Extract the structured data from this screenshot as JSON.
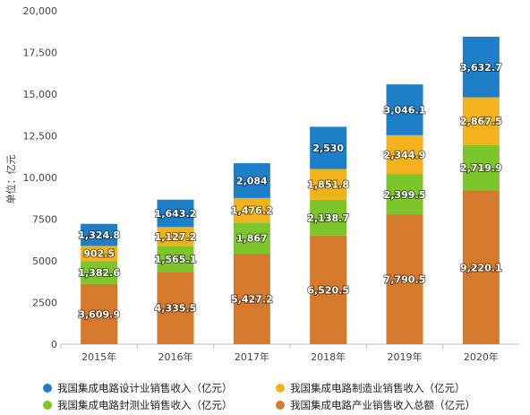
{
  "chart_data": {
    "type": "bar",
    "stacked": true,
    "categories": [
      "2015年",
      "2016年",
      "2017年",
      "2018年",
      "2019年",
      "2020年"
    ],
    "ylabel": "单位：亿元",
    "ylim": [
      0,
      20000
    ],
    "yticks": [
      0,
      2500,
      5000,
      7500,
      10000,
      12500,
      15000,
      17500,
      20000
    ],
    "ytick_labels": [
      "0",
      "2500",
      "5000",
      "7500",
      "10,000",
      "12,500",
      "15,000",
      "17,500",
      "20,000"
    ],
    "grid": false,
    "legend_position": "bottom",
    "series": [
      {
        "name": "我国集成电路封测业销售收入（亿元）",
        "color": "#7cc52b",
        "values": [
          1382.6,
          1565.1,
          1867,
          2138.7,
          2399.5,
          2719.9
        ],
        "labels": [
          "1,382.6",
          "1,565.1",
          "1,867",
          "2,138.7",
          "2,399.5",
          "2,719.9"
        ]
      },
      {
        "name": "我国集成电路制造业销售收入（亿元）",
        "color": "#f3b21b",
        "values": [
          902.5,
          1127.2,
          1476.2,
          1851.8,
          2344.9,
          2867.5
        ],
        "labels": [
          "902.5",
          "1,127.2",
          "1,476.2",
          "1,851.8",
          "2,344.9",
          "2,867.5"
        ]
      },
      {
        "name": "我国集成电路设计业销售收入（亿元）",
        "color": "#1d7fc7",
        "values": [
          1324.8,
          1643.2,
          2084,
          2530,
          3046.1,
          3632.7
        ],
        "labels": [
          "1,324.8",
          "1,643.2",
          "2,084",
          "2,530",
          "3,046.1",
          "3,632.7"
        ]
      }
    ],
    "total": {
      "name": "我国集成电路产业销售收入总额（亿元）",
      "color": "#d5792d",
      "values": [
        3609.9,
        4335.5,
        5427.2,
        6520.5,
        7790.5,
        9220.1
      ],
      "labels": [
        "3,609.9",
        "4,335.5",
        "5,427.2",
        "6,520.5",
        "7,790.5",
        "9,220.1"
      ]
    }
  },
  "legend": [
    {
      "label": "我国集成电路设计业销售收入（亿元）",
      "color": "#1d7fc7"
    },
    {
      "label": "我国集成电路制造业销售收入（亿元）",
      "color": "#f3b21b"
    },
    {
      "label": "我国集成电路封测业销售收入（亿元）",
      "color": "#7cc52b"
    },
    {
      "label": "我国集成电路产业销售收入总额（亿元）",
      "color": "#d5792d"
    }
  ]
}
